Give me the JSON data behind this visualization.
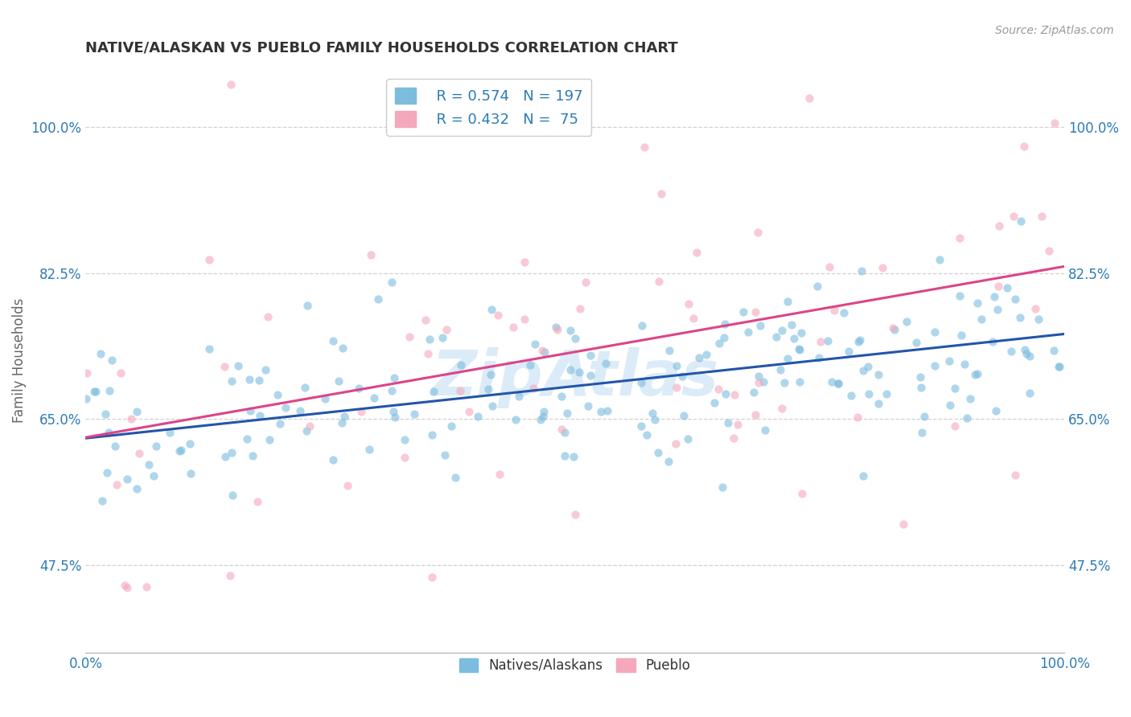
{
  "title": "NATIVE/ALASKAN VS PUEBLO FAMILY HOUSEHOLDS CORRELATION CHART",
  "source_text": "Source: ZipAtlas.com",
  "ylabel": "Family Households",
  "xlim": [
    0.0,
    1.0
  ],
  "ylim": [
    0.37,
    1.07
  ],
  "x_tick_labels": [
    "0.0%",
    "100.0%"
  ],
  "y_tick_labels": [
    "47.5%",
    "65.0%",
    "82.5%",
    "100.0%"
  ],
  "y_tick_positions": [
    0.475,
    0.65,
    0.825,
    1.0
  ],
  "legend_name_1": "Natives/Alaskans",
  "legend_name_2": "Pueblo",
  "R1": 0.574,
  "N1": 197,
  "R2": 0.432,
  "N2": 75,
  "color_blue": "#7bbcdf",
  "color_pink": "#f4a8bc",
  "line_color_blue": "#2255aa",
  "line_color_pink": "#dd4488",
  "watermark": "ZipAtlas",
  "title_color": "#333333",
  "title_fontsize": 13,
  "tick_label_color": "#2c7bb6",
  "grid_color": "#cccccc",
  "background_color": "#ffffff",
  "dot_size": 55,
  "dot_alpha": 0.6,
  "blue_intercept": 0.627,
  "blue_slope": 0.125,
  "pink_intercept": 0.628,
  "pink_slope": 0.205,
  "blue_mean": 0.69,
  "blue_std": 0.065,
  "pink_mean": 0.745,
  "pink_std": 0.13
}
